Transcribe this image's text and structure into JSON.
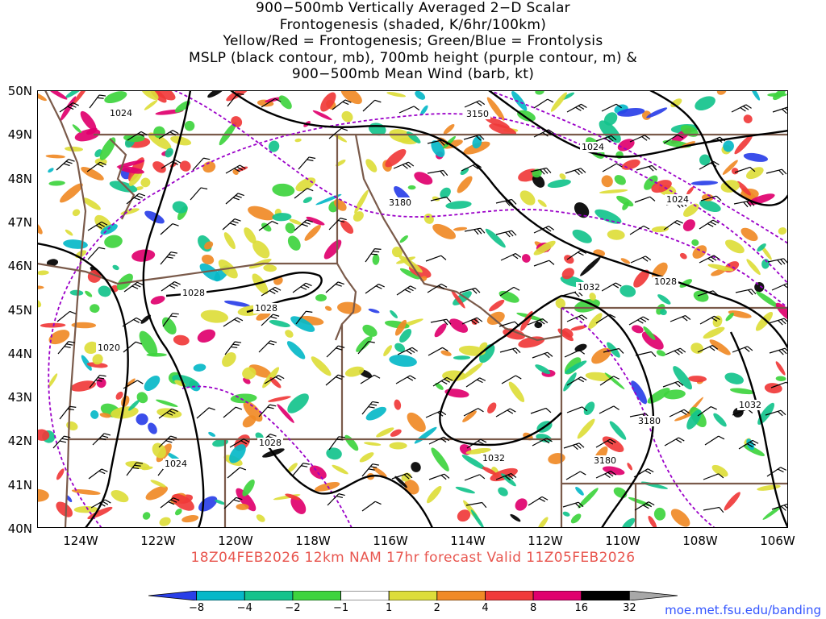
{
  "title": {
    "line1": "900−500mb Vertically Averaged 2−D Scalar",
    "line2": "Frontogenesis (shaded, K/6hr/100km)",
    "line3": "Yellow/Red = Frontogenesis;  Green/Blue = Frontolysis",
    "line4": "MSLP (black contour, mb), 700mb height (purple contour, m) &",
    "line5": "900−500mb Mean Wind (barb, kt)"
  },
  "valid_text": "18Z04FEB2026 12km NAM 17hr forecast Valid 11Z05FEB2026",
  "url": "moe.met.fsu.edu/banding",
  "lat_labels": [
    "50N",
    "49N",
    "48N",
    "47N",
    "46N",
    "45N",
    "44N",
    "43N",
    "42N",
    "41N",
    "40N"
  ],
  "lon_labels": [
    "124W",
    "122W",
    "120W",
    "118W",
    "116W",
    "114W",
    "112W",
    "110W",
    "108W",
    "106W"
  ],
  "colorbar": {
    "labels": [
      "−8",
      "−4",
      "−2",
      "−1",
      "1",
      "2",
      "4",
      "8",
      "16",
      "32"
    ],
    "colors": [
      "#2a3fe8",
      "#06b8c8",
      "#14c38c",
      "#3ed43e",
      "#ffffff",
      "#dddd3a",
      "#f08a26",
      "#f03a3a",
      "#e0006e",
      "#000000",
      "#a8a8a8"
    ]
  },
  "contour_labels": {
    "mslp": [
      "1024",
      "1028",
      "1028",
      "1020",
      "1024",
      "1028",
      "1032",
      "1032",
      "1028",
      "1024",
      "1024",
      "1032"
    ],
    "height": [
      "3150",
      "3180",
      "3180",
      "3180"
    ]
  },
  "colors": {
    "valid_text": "#e8564f",
    "url": "#3355ff",
    "boundary": "#7a5a4a",
    "mslp_contour": "#000000",
    "height_contour": "#9b00c8"
  }
}
